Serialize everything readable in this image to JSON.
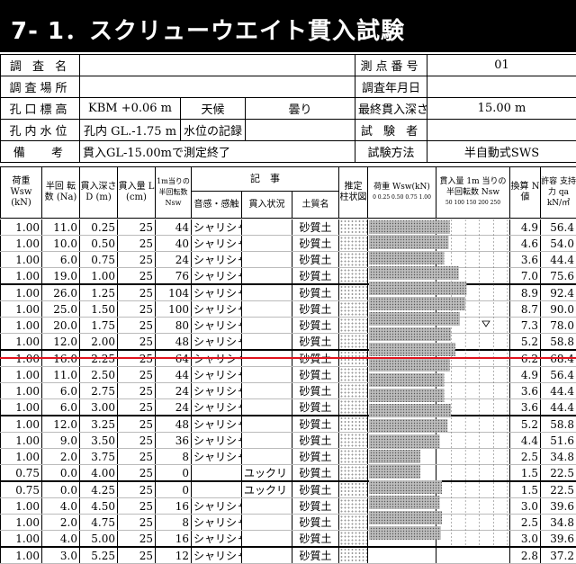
{
  "title": "7- 1．スクリューウエイト貫入試験",
  "info": {
    "survey_name_label": "調 査 名",
    "survey_name_value": "",
    "point_no_label": "測点番号",
    "point_no_value": "01",
    "site_label": "調査場所",
    "site_value": "",
    "date_label": "調査年月日",
    "date_value": "",
    "elev_label": "孔口標高",
    "elev_value": "KBM  +0.06 m",
    "weather_label": "天候",
    "weather_value": "曇り",
    "max_depth_label": "最終貫入深さ",
    "max_depth_value": "15.00 m",
    "water_label": "孔内水位",
    "water_value": "孔内 GL.-1.75 m",
    "water_rec_label": "水位の記録",
    "water_rec_value": "",
    "tester_label": "試 験 者",
    "tester_value": "",
    "remarks_label": "備　 考",
    "remarks_value": "貫入GL-15.00mで測定終了",
    "method_label": "試験方法",
    "method_value": "半自動式SWS"
  },
  "headers": {
    "load": "荷重 Wsw (kN)",
    "half_turns": "半回 転数 (Na)",
    "depth": "貫入深さ D (m)",
    "penetration": "貫入量 L (cm)",
    "nsw": "1m当りの 半回転数 Nsw",
    "record": "記　事",
    "sound": "音感・感触",
    "pen_state": "貫入状況",
    "soil": "土質名",
    "est_col": "推定 柱状図",
    "load_graph": "荷重 Wsw(kN)",
    "load_ticks": "0  0.25 0.50 0.75 1.00",
    "nsw_graph": "貫入量 1m 当りの 半回転数 Nsw",
    "nsw_ticks": "50  100 150  200 250",
    "n_value": "換算 N 値",
    "qa": "許容 支持力 qa kN/㎡"
  },
  "rows": [
    {
      "w": "1.00",
      "na": "11.0",
      "d": "0.25",
      "l": "25",
      "nsw": "44",
      "sound": "シャリシャリ",
      "state": "",
      "soil": "砂質土",
      "n": "4.9",
      "qa": "56.4"
    },
    {
      "w": "1.00",
      "na": "10.0",
      "d": "0.50",
      "l": "25",
      "nsw": "40",
      "sound": "シャリシャリ",
      "state": "",
      "soil": "砂質土",
      "n": "4.6",
      "qa": "54.0"
    },
    {
      "w": "1.00",
      "na": "6.0",
      "d": "0.75",
      "l": "25",
      "nsw": "24",
      "sound": "シャリシャリ",
      "state": "",
      "soil": "砂質土",
      "n": "3.6",
      "qa": "44.4"
    },
    {
      "w": "1.00",
      "na": "19.0",
      "d": "1.00",
      "l": "25",
      "nsw": "76",
      "sound": "シャリシャリ",
      "state": "",
      "soil": "砂質土",
      "n": "7.0",
      "qa": "75.6"
    },
    {
      "w": "1.00",
      "na": "26.0",
      "d": "1.25",
      "l": "25",
      "nsw": "104",
      "sound": "シャリシャリ",
      "state": "",
      "soil": "砂質土",
      "n": "8.9",
      "qa": "92.4"
    },
    {
      "w": "1.00",
      "na": "25.0",
      "d": "1.50",
      "l": "25",
      "nsw": "100",
      "sound": "シャリシャリ",
      "state": "",
      "soil": "砂質土",
      "n": "8.7",
      "qa": "90.0"
    },
    {
      "w": "1.00",
      "na": "20.0",
      "d": "1.75",
      "l": "25",
      "nsw": "80",
      "sound": "シャリシャリ",
      "state": "",
      "soil": "砂質土",
      "n": "7.3",
      "qa": "78.0"
    },
    {
      "w": "1.00",
      "na": "12.0",
      "d": "2.00",
      "l": "25",
      "nsw": "48",
      "sound": "シャリシャリ",
      "state": "",
      "soil": "砂質土",
      "n": "5.2",
      "qa": "58.8"
    },
    {
      "w": "1.00",
      "na": "16.0",
      "d": "2.25",
      "l": "25",
      "nsw": "64",
      "sound": "シャリシャリ",
      "state": "",
      "soil": "砂質土",
      "n": "6.2",
      "qa": "68.4"
    },
    {
      "w": "1.00",
      "na": "11.0",
      "d": "2.50",
      "l": "25",
      "nsw": "44",
      "sound": "シャリシャリ",
      "state": "",
      "soil": "砂質土",
      "n": "4.9",
      "qa": "56.4"
    },
    {
      "w": "1.00",
      "na": "6.0",
      "d": "2.75",
      "l": "25",
      "nsw": "24",
      "sound": "シャリシャリ",
      "state": "",
      "soil": "砂質土",
      "n": "3.6",
      "qa": "44.4"
    },
    {
      "w": "1.00",
      "na": "6.0",
      "d": "3.00",
      "l": "25",
      "nsw": "24",
      "sound": "シャリシャリ",
      "state": "",
      "soil": "砂質土",
      "n": "3.6",
      "qa": "44.4"
    },
    {
      "w": "1.00",
      "na": "12.0",
      "d": "3.25",
      "l": "25",
      "nsw": "48",
      "sound": "シャリシャリ",
      "state": "",
      "soil": "砂質土",
      "n": "5.2",
      "qa": "58.8"
    },
    {
      "w": "1.00",
      "na": "9.0",
      "d": "3.50",
      "l": "25",
      "nsw": "36",
      "sound": "シャリシャリ",
      "state": "",
      "soil": "砂質土",
      "n": "4.4",
      "qa": "51.6"
    },
    {
      "w": "1.00",
      "na": "2.0",
      "d": "3.75",
      "l": "25",
      "nsw": "8",
      "sound": "シャリシャリ",
      "state": "",
      "soil": "砂質土",
      "n": "2.5",
      "qa": "34.8"
    },
    {
      "w": "0.75",
      "na": "0.0",
      "d": "4.00",
      "l": "25",
      "nsw": "0",
      "sound": "",
      "state": "ユックリ",
      "soil": "砂質土",
      "n": "1.5",
      "qa": "22.5"
    },
    {
      "w": "0.75",
      "na": "0.0",
      "d": "4.25",
      "l": "25",
      "nsw": "0",
      "sound": "",
      "state": "ユックリ",
      "soil": "砂質土",
      "n": "1.5",
      "qa": "22.5"
    },
    {
      "w": "1.00",
      "na": "4.0",
      "d": "4.50",
      "l": "25",
      "nsw": "16",
      "sound": "シャリシャリ",
      "state": "",
      "soil": "砂質土",
      "n": "3.0",
      "qa": "39.6"
    },
    {
      "w": "1.00",
      "na": "2.0",
      "d": "4.75",
      "l": "25",
      "nsw": "8",
      "sound": "シャリシャリ",
      "state": "",
      "soil": "砂質土",
      "n": "2.5",
      "qa": "34.8"
    },
    {
      "w": "1.00",
      "na": "4.0",
      "d": "5.00",
      "l": "25",
      "nsw": "16",
      "sound": "シャリシャリ",
      "state": "",
      "soil": "砂質土",
      "n": "3.0",
      "qa": "39.6"
    },
    {
      "w": "1.00",
      "na": "3.0",
      "d": "5.25",
      "l": "25",
      "nsw": "12",
      "sound": "シャリシャリ",
      "state": "",
      "soil": "砂質土",
      "n": "2.8",
      "qa": "37.2"
    }
  ],
  "water_level_depth_m": 1.75,
  "colors": {
    "title_bg": "#000000",
    "marker_line": "#e0141e",
    "bar_fill": "#8a8a8a",
    "hatch": "#999999"
  }
}
